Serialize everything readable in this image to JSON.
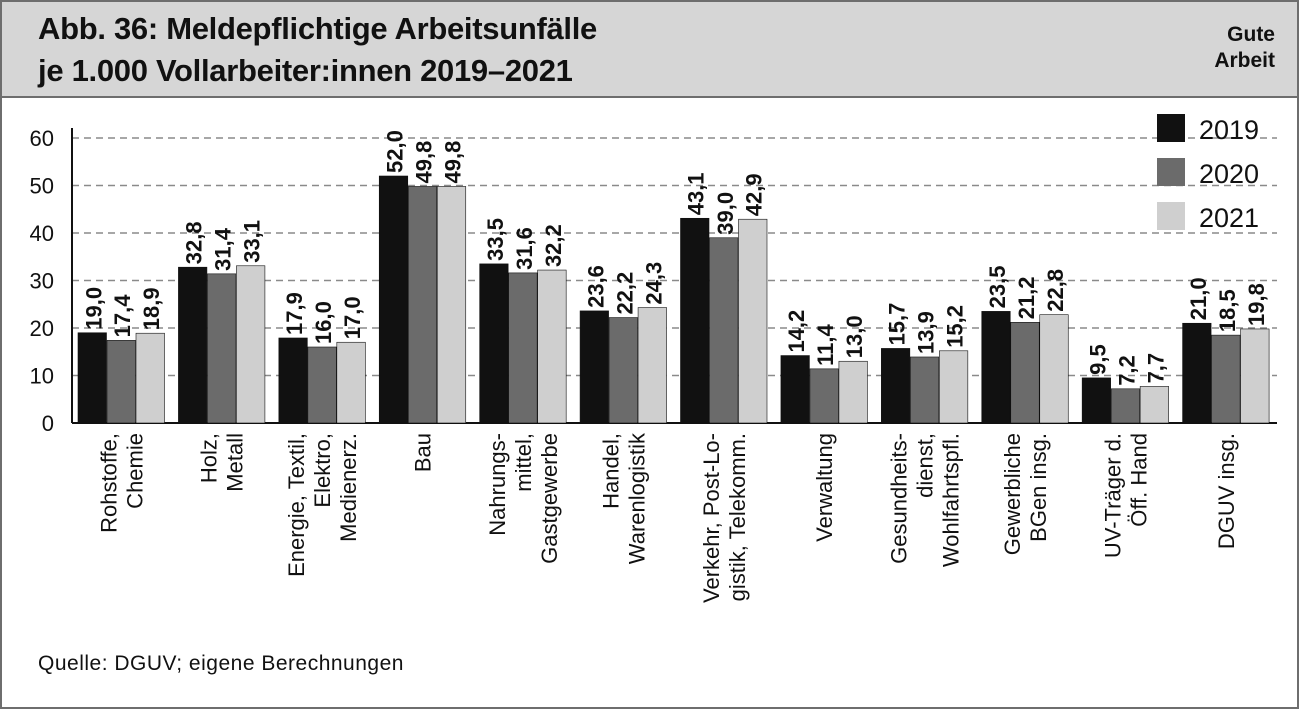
{
  "header": {
    "title_line1": "Abb. 36: Meldepflichtige Arbeitsunfälle",
    "title_line2": "je 1.000 Vollarbeiter:innen 2019–2021",
    "brand_line1": "Gute",
    "brand_line2": "Arbeit"
  },
  "source": "Quelle: DGUV;  eigene  Berechnungen",
  "chart_data": {
    "type": "bar",
    "title": "Abb. 36: Meldepflichtige Arbeitsunfälle je 1.000 Vollarbeiter:innen 2019–2021",
    "xlabel": "",
    "ylabel": "",
    "ylim": [
      0,
      60
    ],
    "yticks": [
      "0",
      "10",
      "20",
      "30",
      "40",
      "50",
      "60"
    ],
    "grid": true,
    "legend_position": "top-right",
    "categories": [
      [
        "Rohstoffe,",
        "Chemie"
      ],
      [
        "Holz,",
        "Metall"
      ],
      [
        "Energie, Textil,",
        "Elektro,",
        "Medienerz."
      ],
      [
        "Bau"
      ],
      [
        "Nahrungs-",
        "mittel,",
        "Gastgewerbe"
      ],
      [
        "Handel,",
        "Warenlogistik"
      ],
      [
        "Verkehr, Post-Lo-",
        "gistik, Telekomm."
      ],
      [
        "Verwaltung"
      ],
      [
        "Gesundheits-",
        "dienst,",
        "Wohlfahrtspfl."
      ],
      [
        "Gewerbliche",
        "BGen insg."
      ],
      [
        "UV-Träger d.",
        "Öff. Hand"
      ],
      [
        "DGUV insg."
      ]
    ],
    "series": [
      {
        "name": "2019",
        "color": "#111111",
        "values": [
          19.0,
          32.8,
          17.9,
          52.0,
          33.5,
          23.6,
          43.1,
          14.2,
          15.7,
          23.5,
          9.5,
          21.0
        ],
        "labels": [
          "19,0",
          "32,8",
          "17,9",
          "52,0",
          "33,5",
          "23,6",
          "43,1",
          "14,2",
          "15,7",
          "23,5",
          "9,5",
          "21,0"
        ]
      },
      {
        "name": "2020",
        "color": "#6b6b6b",
        "values": [
          17.4,
          31.4,
          16.0,
          49.8,
          31.6,
          22.2,
          39.0,
          11.4,
          13.9,
          21.2,
          7.2,
          18.5
        ],
        "labels": [
          "17,4",
          "31,4",
          "16,0",
          "49,8",
          "31,6",
          "22,2",
          "39,0",
          "11,4",
          "13,9",
          "21,2",
          "7,2",
          "18,5"
        ]
      },
      {
        "name": "2021",
        "color": "#cfcfcf",
        "values": [
          18.9,
          33.1,
          17.0,
          49.8,
          32.2,
          24.3,
          42.9,
          13.0,
          15.2,
          22.8,
          7.7,
          19.8
        ],
        "labels": [
          "18,9",
          "33,1",
          "17,0",
          "49,8",
          "32,2",
          "24,3",
          "42,9",
          "13,0",
          "15,2",
          "22,8",
          "7,7",
          "19,8"
        ]
      }
    ]
  }
}
